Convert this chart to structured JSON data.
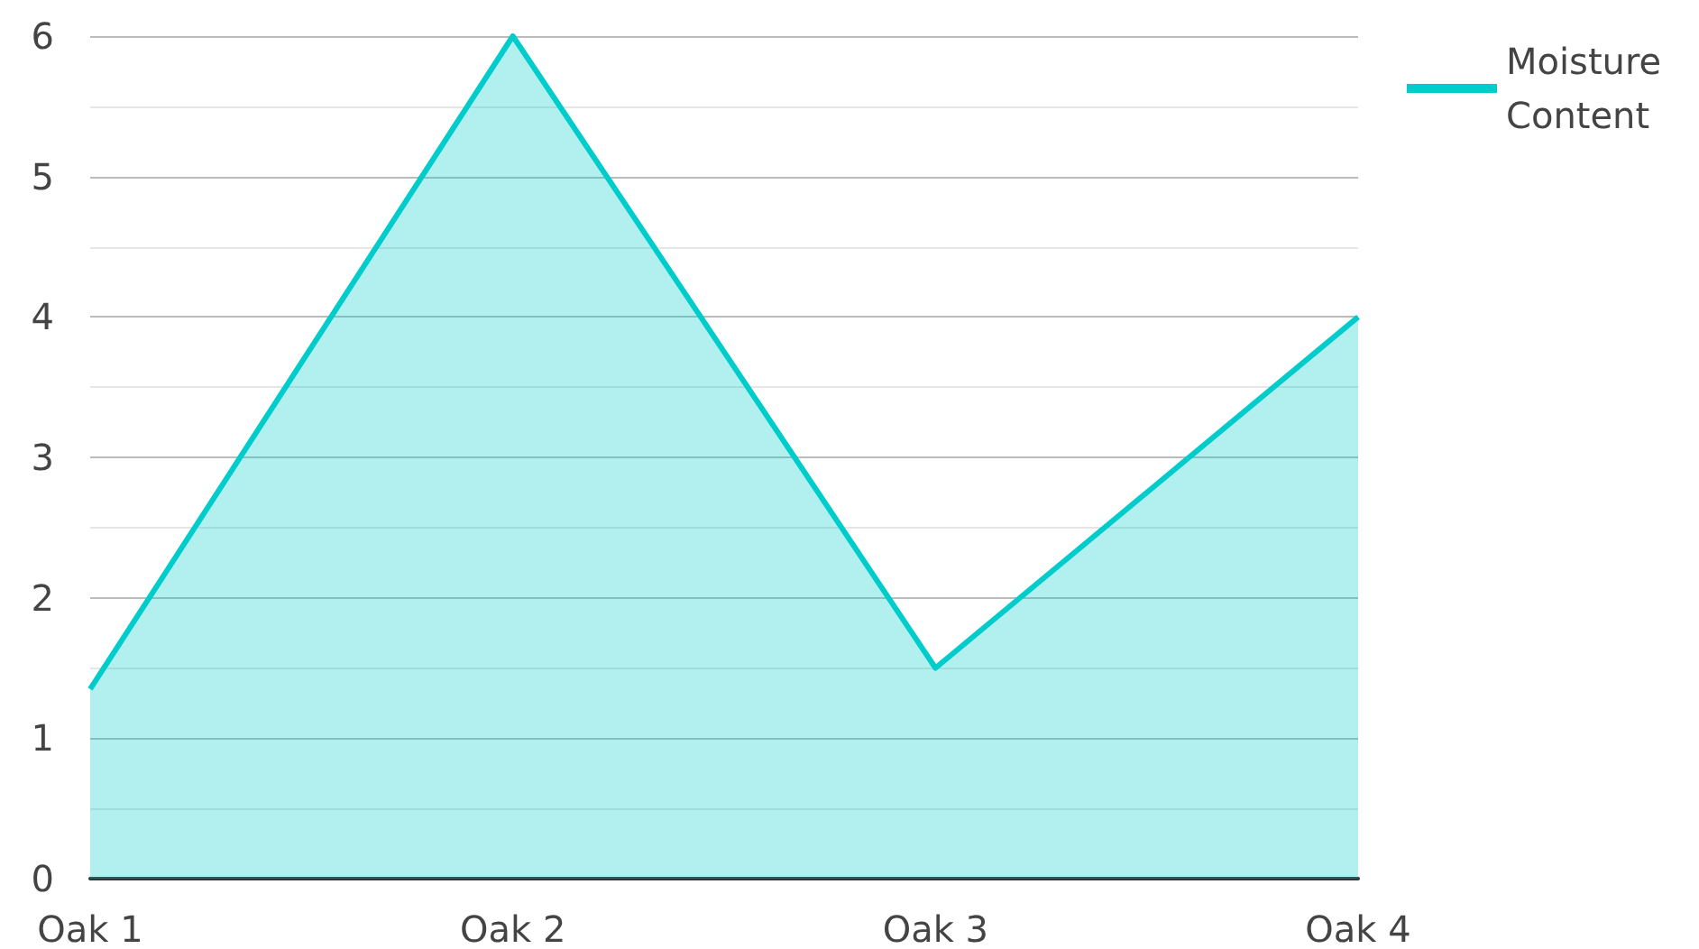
{
  "chart_data": {
    "type": "area",
    "categories": [
      "Oak 1",
      "Oak 2",
      "Oak 3",
      "Oak 4"
    ],
    "series": [
      {
        "name": "Moisture Content",
        "color": "#00cccc",
        "values": [
          1.35,
          6,
          1.5,
          4
        ]
      }
    ],
    "ylim": [
      0,
      6
    ],
    "yticks": [
      0,
      1,
      2,
      3,
      4,
      5,
      6
    ],
    "grid": "y",
    "legend": "top right",
    "marker": "none"
  }
}
